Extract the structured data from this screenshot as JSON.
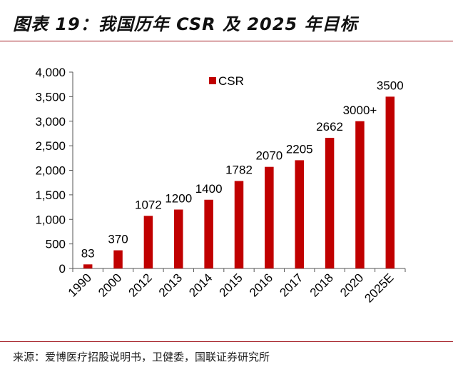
{
  "header": {
    "title": "图表 19：我国历年 CSR 及 2025 年目标"
  },
  "footer": {
    "source": "来源：爱博医疗招股说明书，卫健委，国联证券研究所"
  },
  "colors": {
    "bar": "#c00000",
    "accent_line": "#a31a22"
  },
  "chart_data": {
    "type": "bar",
    "categories": [
      "1990",
      "2000",
      "2012",
      "2013",
      "2014",
      "2015",
      "2016",
      "2017",
      "2018",
      "2020",
      "2025E"
    ],
    "series": [
      {
        "name": "CSR",
        "values": [
          83,
          370,
          1072,
          1200,
          1400,
          1782,
          2070,
          2205,
          2662,
          3000,
          3500
        ],
        "labels": [
          "83",
          "370",
          "1072",
          "1200",
          "1400",
          "1782",
          "2070",
          "2205",
          "2662",
          "3000+",
          "3500"
        ]
      }
    ],
    "ylim": [
      0,
      4000
    ],
    "yticks": [
      0,
      500,
      1000,
      1500,
      2000,
      2500,
      3000,
      3500,
      4000
    ],
    "ytick_labels": [
      "0",
      "500",
      "1,000",
      "1,500",
      "2,000",
      "2,500",
      "3,000",
      "3,500",
      "4,000"
    ],
    "legend": "top-left",
    "grid": false
  }
}
